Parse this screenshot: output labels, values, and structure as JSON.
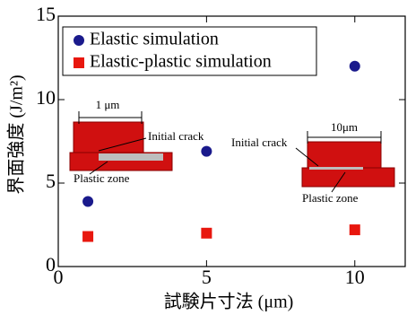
{
  "chart_data": {
    "type": "scatter",
    "xlabel": "試験片寸法 (μm)",
    "ylabel": "界面強度 (J/m²)",
    "xlim": [
      0,
      11.7
    ],
    "ylim": [
      0,
      15
    ],
    "xticks": [
      0,
      5,
      10
    ],
    "yticks": [
      0,
      5,
      10,
      15
    ],
    "legend": "upper left",
    "series": [
      {
        "name": "Elastic simulation",
        "color": "#1a1a8c",
        "marker": "circle",
        "x": [
          1,
          5,
          10
        ],
        "values": [
          3.9,
          6.9,
          12
        ]
      },
      {
        "name": "Elastic-plastic simulation",
        "color": "#e8170e",
        "marker": "square",
        "x": [
          1,
          5,
          10
        ],
        "values": [
          1.8,
          2.0,
          2.2
        ]
      }
    ],
    "annotations": [
      "1 μm",
      "Initial crack",
      "Plastic zone",
      "10μm",
      "Initial crack",
      "Plastic zone"
    ]
  }
}
